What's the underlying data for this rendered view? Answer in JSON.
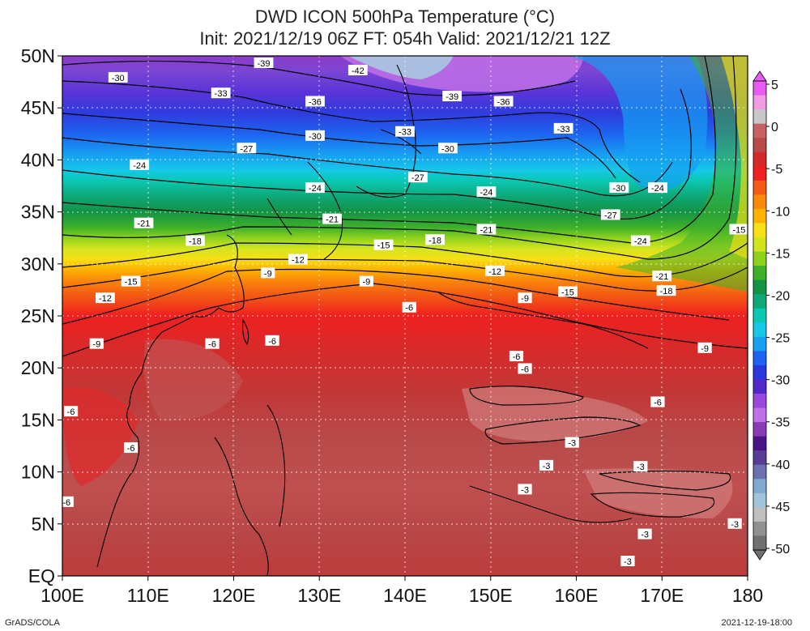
{
  "title": {
    "line1": "DWD ICON 500hPa Temperature (°C)",
    "line2": "Init: 2021/12/19 06Z  FT: 054h  Valid: 2021/12/21 12Z"
  },
  "map": {
    "lat_labels": [
      "50N",
      "45N",
      "40N",
      "35N",
      "30N",
      "25N",
      "20N",
      "15N",
      "10N",
      "5N",
      "EQ"
    ],
    "lon_labels": [
      "100E",
      "110E",
      "120E",
      "130E",
      "140E",
      "150E",
      "160E",
      "170E",
      "180"
    ],
    "contour_labels": [
      {
        "lon": 123.5,
        "lat": 49.3,
        "text": "-39"
      },
      {
        "lon": 134.5,
        "lat": 48.6,
        "text": "-42"
      },
      {
        "lon": 106.5,
        "lat": 47.9,
        "text": "-30"
      },
      {
        "lon": 118.5,
        "lat": 46.4,
        "text": "-33"
      },
      {
        "lon": 129.5,
        "lat": 45.6,
        "text": "-36"
      },
      {
        "lon": 145.5,
        "lat": 46.1,
        "text": "-39"
      },
      {
        "lon": 151.5,
        "lat": 45.6,
        "text": "-36"
      },
      {
        "lon": 129.5,
        "lat": 42.3,
        "text": "-30"
      },
      {
        "lon": 140,
        "lat": 42.7,
        "text": "-33"
      },
      {
        "lon": 158.5,
        "lat": 43.0,
        "text": "-33"
      },
      {
        "lon": 121.5,
        "lat": 41.1,
        "text": "-27"
      },
      {
        "lon": 145,
        "lat": 41.1,
        "text": "-30"
      },
      {
        "lon": 109,
        "lat": 39.5,
        "text": "-24"
      },
      {
        "lon": 141.5,
        "lat": 38.3,
        "text": "-27"
      },
      {
        "lon": 129.5,
        "lat": 37.3,
        "text": "-24"
      },
      {
        "lon": 149.5,
        "lat": 36.9,
        "text": "-24"
      },
      {
        "lon": 165,
        "lat": 37.3,
        "text": "-30"
      },
      {
        "lon": 169.5,
        "lat": 37.3,
        "text": "-24"
      },
      {
        "lon": 164,
        "lat": 34.7,
        "text": "-27"
      },
      {
        "lon": 131.5,
        "lat": 34.3,
        "text": "-21"
      },
      {
        "lon": 109.5,
        "lat": 33.9,
        "text": "-21"
      },
      {
        "lon": 149.5,
        "lat": 33.3,
        "text": "-21"
      },
      {
        "lon": 179,
        "lat": 33.3,
        "text": "-15"
      },
      {
        "lon": 115.5,
        "lat": 32.2,
        "text": "-18"
      },
      {
        "lon": 143.5,
        "lat": 32.3,
        "text": "-18"
      },
      {
        "lon": 167.5,
        "lat": 32.2,
        "text": "-24"
      },
      {
        "lon": 137.5,
        "lat": 31.8,
        "text": "-15"
      },
      {
        "lon": 127.5,
        "lat": 30.4,
        "text": "-12"
      },
      {
        "lon": 124,
        "lat": 29.1,
        "text": "-9"
      },
      {
        "lon": 150.5,
        "lat": 29.3,
        "text": "-12"
      },
      {
        "lon": 108,
        "lat": 28.3,
        "text": "-15"
      },
      {
        "lon": 170,
        "lat": 28.8,
        "text": "-21"
      },
      {
        "lon": 135.5,
        "lat": 28.3,
        "text": "-9"
      },
      {
        "lon": 154,
        "lat": 26.7,
        "text": "-9"
      },
      {
        "lon": 159,
        "lat": 27.3,
        "text": "-15"
      },
      {
        "lon": 170.5,
        "lat": 27.4,
        "text": "-18"
      },
      {
        "lon": 105,
        "lat": 26.7,
        "text": "-12"
      },
      {
        "lon": 140.5,
        "lat": 25.8,
        "text": "-6"
      },
      {
        "lon": 124.5,
        "lat": 22.6,
        "text": "-6"
      },
      {
        "lon": 117.5,
        "lat": 22.3,
        "text": "-6"
      },
      {
        "lon": 104,
        "lat": 22.3,
        "text": "-9"
      },
      {
        "lon": 175,
        "lat": 21.9,
        "text": "-9"
      },
      {
        "lon": 153,
        "lat": 21.1,
        "text": "-6"
      },
      {
        "lon": 154,
        "lat": 19.9,
        "text": "-6"
      },
      {
        "lon": 169.5,
        "lat": 16.7,
        "text": "-6"
      },
      {
        "lon": 101,
        "lat": 15.8,
        "text": "-6"
      },
      {
        "lon": 108,
        "lat": 12.3,
        "text": "-6"
      },
      {
        "lon": 159.5,
        "lat": 12.8,
        "text": "-3"
      },
      {
        "lon": 156.5,
        "lat": 10.6,
        "text": "-3"
      },
      {
        "lon": 167.5,
        "lat": 10.5,
        "text": "-3"
      },
      {
        "lon": 154,
        "lat": 8.3,
        "text": "-3"
      },
      {
        "lon": 100.5,
        "lat": 7.1,
        "text": "-6"
      },
      {
        "lon": 178.5,
        "lat": 5.0,
        "text": "-3"
      },
      {
        "lon": 168,
        "lat": 4.0,
        "text": "-3"
      },
      {
        "lon": 166,
        "lat": 1.4,
        "text": "-3"
      }
    ]
  },
  "colorbar": {
    "labels": [
      "5",
      "0",
      "-5",
      "-10",
      "-15",
      "-20",
      "-25",
      "-30",
      "-35",
      "-40",
      "-45",
      "-50"
    ],
    "colors": [
      "#e65bf0",
      "#f09be4",
      "#c8c8c8",
      "#c86262",
      "#b84a4a",
      "#d62a2a",
      "#ef2020",
      "#f45a14",
      "#fb8a0a",
      "#fdb400",
      "#f8e016",
      "#d2e41e",
      "#8ed21e",
      "#3eb02a",
      "#139245",
      "#0ea878",
      "#0ac8b4",
      "#16c8e8",
      "#16a0f2",
      "#1e64f0",
      "#2a36dc",
      "#5228c8",
      "#9a48dc",
      "#c070e6",
      "#8a3ab4",
      "#4a1488",
      "#5a3c96",
      "#6a70b0",
      "#80a8d0",
      "#a0c4dc",
      "#bfbfbf",
      "#909090",
      "#707070"
    ]
  },
  "footer": {
    "left": "GrADS/COLA",
    "right": "2021-12-19-18:00"
  }
}
